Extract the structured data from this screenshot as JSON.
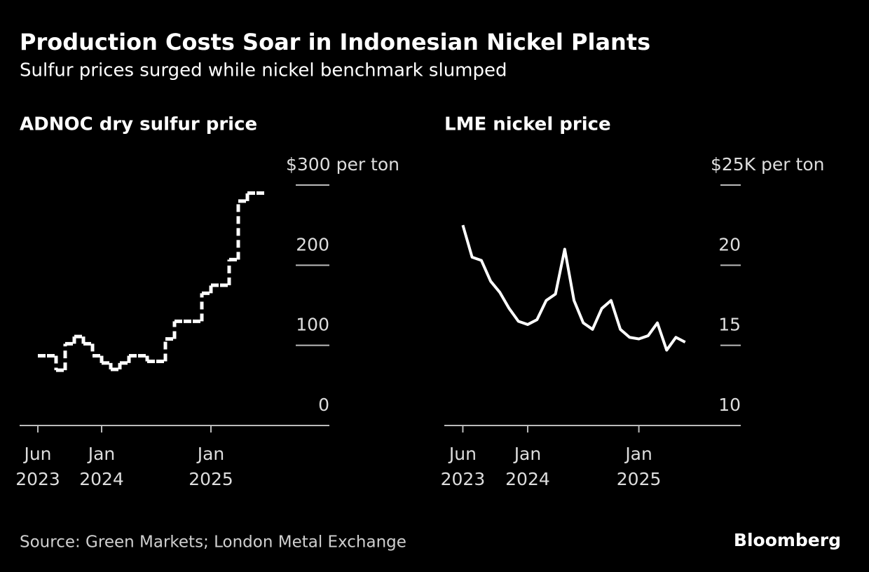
{
  "title": "Production Costs Soar in Indonesian Nickel Plants",
  "subtitle": "Sulfur prices surged while nickel benchmark slumped",
  "source": "Source: Green Markets; London Metal Exchange",
  "logo": "Bloomberg",
  "chart_data": [
    {
      "type": "line",
      "step": true,
      "dashed": true,
      "grid": true,
      "color": "#ffffff",
      "title": "ADNOC dry sulfur price",
      "x": [
        "2023-06",
        "2023-07",
        "2023-08",
        "2023-09",
        "2023-10",
        "2023-11",
        "2023-12",
        "2024-01",
        "2024-02",
        "2024-03",
        "2024-04",
        "2024-05",
        "2024-06",
        "2024-07",
        "2024-08",
        "2024-09",
        "2024-10",
        "2024-11",
        "2024-12",
        "2025-01",
        "2025-02",
        "2025-03",
        "2025-04",
        "2025-05",
        "2025-06"
      ],
      "values": [
        87,
        87,
        69,
        102,
        111,
        102,
        87,
        78,
        70,
        78,
        87,
        87,
        80,
        80,
        108,
        130,
        130,
        130,
        165,
        175,
        175,
        207,
        280,
        290,
        290
      ],
      "xlim": [
        "2023-04",
        "2026-02"
      ],
      "xticks": [
        {
          "value": "2023-06",
          "label": "Jun 2023"
        },
        {
          "value": "2024-01",
          "label": "Jan 2024"
        },
        {
          "value": "2025-01",
          "label": "Jan 2025"
        }
      ],
      "ylim": [
        0,
        300
      ],
      "yticks": [
        0,
        100,
        200,
        {
          "value": 300,
          "label": "$300 per ton"
        }
      ]
    },
    {
      "type": "line",
      "step": false,
      "dashed": false,
      "grid": true,
      "color": "#ffffff",
      "title": "LME nickel price",
      "x": [
        "2023-06",
        "2023-07",
        "2023-08",
        "2023-09",
        "2023-10",
        "2023-11",
        "2023-12",
        "2024-01",
        "2024-02",
        "2024-03",
        "2024-04",
        "2024-05",
        "2024-06",
        "2024-07",
        "2024-08",
        "2024-09",
        "2024-10",
        "2024-11",
        "2024-12",
        "2025-01",
        "2025-02",
        "2025-03",
        "2025-04",
        "2025-05",
        "2025-06"
      ],
      "values": [
        22.5,
        20.5,
        20.3,
        19,
        18.3,
        17.3,
        16.5,
        16.3,
        16.6,
        17.8,
        18.2,
        21,
        17.8,
        16.4,
        16,
        17.3,
        17.8,
        16,
        15.5,
        15.4,
        15.6,
        16.4,
        14.7,
        15.5,
        15.2
      ],
      "xlim": [
        "2023-04",
        "2025-12"
      ],
      "xticks": [
        {
          "value": "2023-06",
          "label": "Jun 2023"
        },
        {
          "value": "2024-01",
          "label": "Jan 2024"
        },
        {
          "value": "2025-01",
          "label": "Jan 2025"
        }
      ],
      "ylim": [
        10,
        25
      ],
      "yticks": [
        10,
        15,
        20,
        {
          "value": 25,
          "label": "$25K per ton"
        }
      ]
    }
  ]
}
